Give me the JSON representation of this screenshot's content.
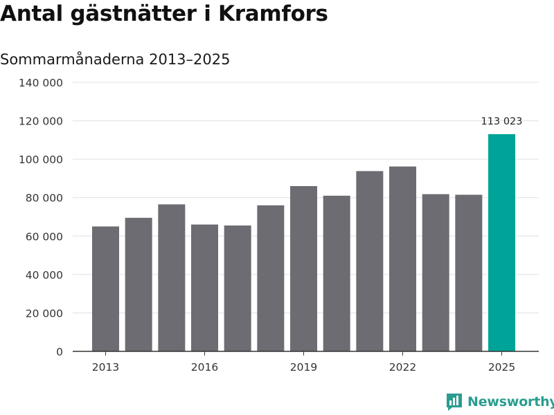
{
  "brand": {
    "name": "Newsworthy",
    "color": "#2a9d8f",
    "icon": "newsworthy-logo-icon"
  },
  "chart_data": {
    "type": "bar",
    "title": "Antal gästnätter i Kramfors",
    "subtitle": "Sommarmånaderna 2013–2025",
    "xlabel": "",
    "ylabel": "",
    "ylim": [
      0,
      140000
    ],
    "y_ticks": [
      0,
      20000,
      40000,
      60000,
      80000,
      100000,
      120000,
      140000
    ],
    "y_tick_labels": [
      "0",
      "20 000",
      "40 000",
      "60 000",
      "80 000",
      "100 000",
      "120 000",
      "140 000"
    ],
    "categories": [
      "2013",
      "2014",
      "2015",
      "2016",
      "2017",
      "2018",
      "2019",
      "2020",
      "2021",
      "2022",
      "2023",
      "2024",
      "2025"
    ],
    "x_tick_labels": [
      "2013",
      "2016",
      "2019",
      "2022",
      "2025"
    ],
    "values": [
      65000,
      69500,
      76500,
      66000,
      65500,
      76000,
      86000,
      81000,
      93800,
      96200,
      81800,
      81500,
      113023
    ],
    "grid": true,
    "colors": {
      "default": "#6d6c72",
      "highlight": "#00a398",
      "gridline": "#e0e0e0",
      "axis": "#333333",
      "text": "#333333"
    },
    "highlight_category": "2025",
    "annotations": [
      {
        "category": "2025",
        "text": "113 023"
      }
    ]
  }
}
